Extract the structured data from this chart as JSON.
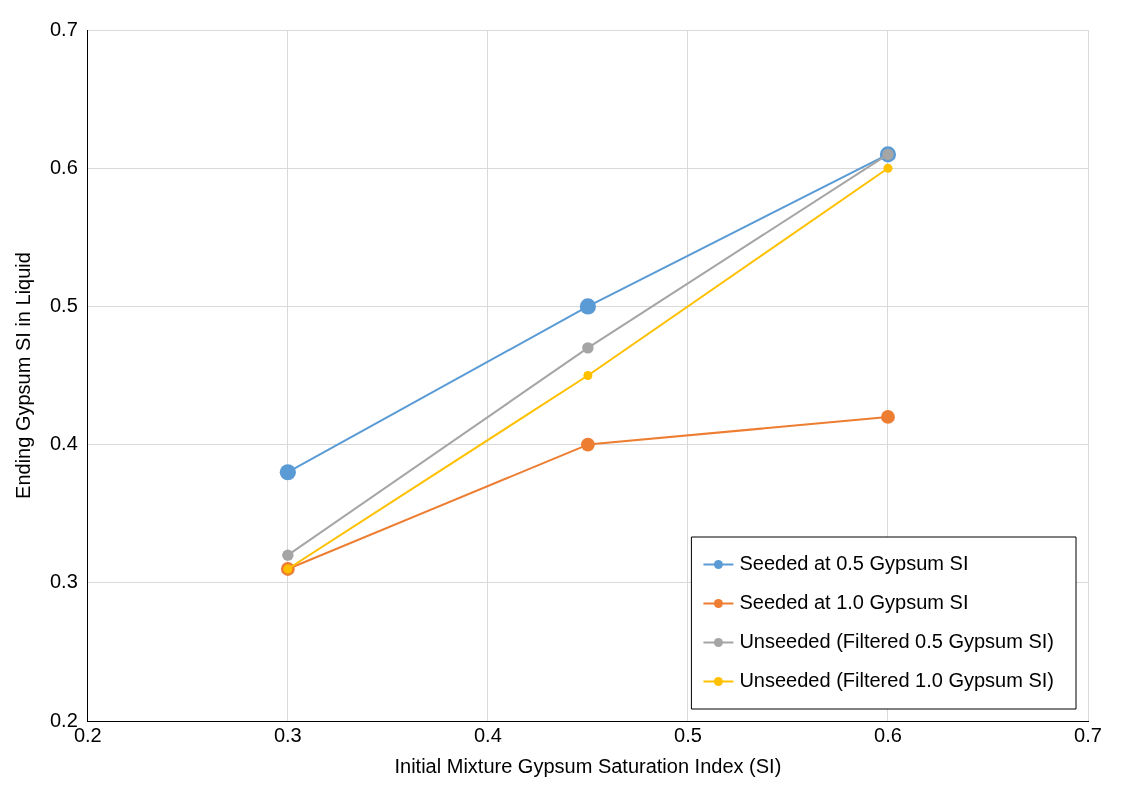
{
  "chart_data": {
    "type": "line",
    "xlabel": "Initial Mixture Gypsum Saturation Index (SI)",
    "ylabel": "Ending Gypsum SI in Liquid",
    "x": [
      0.3,
      0.45,
      0.6
    ],
    "series": [
      {
        "name": "Seeded at 0.5 Gypsum SI",
        "color": "#5b9bd5",
        "values": [
          0.38,
          0.5,
          0.61
        ]
      },
      {
        "name": "Seeded at 1.0 Gypsum SI",
        "color": "#ed7d31",
        "values": [
          0.31,
          0.4,
          0.42
        ]
      },
      {
        "name": "Unseeded (Filtered 0.5 Gypsum SI)",
        "color": "#a5a5a5",
        "values": [
          0.32,
          0.47,
          0.61
        ]
      },
      {
        "name": "Unseeded (Filtered 1.0 Gypsum SI)",
        "color": "#ffc000",
        "values": [
          0.31,
          0.45,
          0.6
        ]
      }
    ],
    "xlim": [
      0.2,
      0.7
    ],
    "xticks": [
      0.2,
      0.3,
      0.4,
      0.5,
      0.6,
      0.7
    ],
    "ylim": [
      0.2,
      0.7
    ],
    "yticks": [
      0.2,
      0.3,
      0.4,
      0.5,
      0.6,
      0.7
    ],
    "grid": true,
    "legend": "bottom right",
    "marker": "circle",
    "line_style": "solid"
  }
}
